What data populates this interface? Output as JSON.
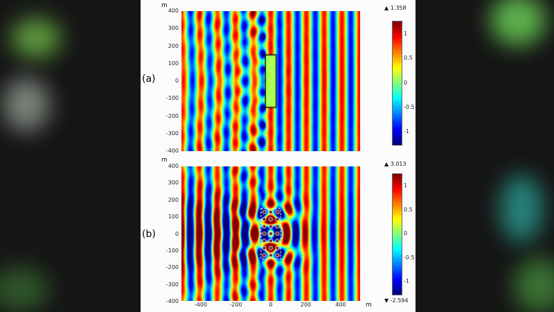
{
  "chart_data": {
    "type": "heatmap",
    "description": "Time-harmonic wave-field simulation snapshots (jet colormap): plane wave incident from the right on (a) a bare rectangular scatterer and (b) the scatterer enclosed by a dashed region containing an array of small cylinders; color gives instantaneous field amplitude",
    "colormap": "jet",
    "panels": [
      {
        "id": "a",
        "label": "(a)",
        "y_unit": "m",
        "x_range": [
          -500,
          500
        ],
        "y_range": [
          -400,
          400
        ],
        "y_ticks": [
          400,
          300,
          200,
          100,
          0,
          -100,
          -200,
          -300,
          -400
        ],
        "wavelength_m": 100,
        "field_max": 1.358,
        "colorbar": {
          "max_label": "▲ 1.358",
          "ticks": [
            1,
            0.5,
            0,
            -0.5,
            -1
          ]
        },
        "obstacle": {
          "shape": "rectangle",
          "x_m": [
            -30,
            30
          ],
          "y_m": [
            -150,
            150
          ],
          "outline": "solid"
        }
      },
      {
        "id": "b",
        "label": "(b)",
        "y_unit": "m",
        "x_unit": "m",
        "x_range": [
          -500,
          500
        ],
        "y_range": [
          -400,
          400
        ],
        "y_ticks": [
          400,
          300,
          200,
          100,
          0,
          -100,
          -200,
          -300,
          -400
        ],
        "x_ticks": [
          -400,
          -200,
          0,
          200,
          400
        ],
        "wavelength_m": 100,
        "field_max": 3.013,
        "field_min": -2.594,
        "colorbar": {
          "max_label": "▲ 3.013",
          "min_label": "▼ -2.594",
          "ticks": [
            1,
            0.5,
            0,
            -0.5,
            -1
          ]
        },
        "obstacle": {
          "shape": "rectangle",
          "x_m": [
            -55,
            55
          ],
          "y_m": [
            -150,
            150
          ],
          "outline": "dashed"
        },
        "cylinder_array": {
          "columns": 3,
          "rows": 7,
          "radius_m": 10
        }
      }
    ]
  }
}
